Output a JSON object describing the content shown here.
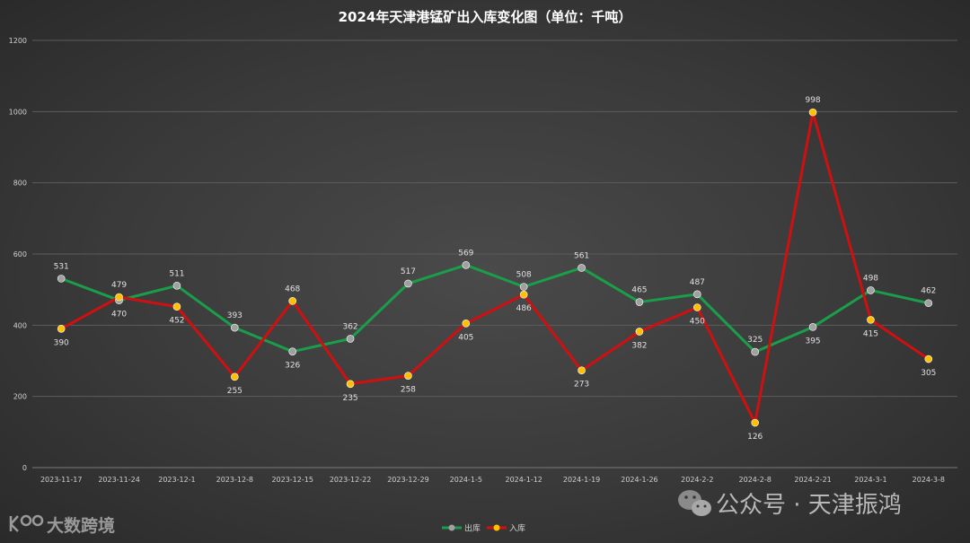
{
  "chart_data": {
    "type": "line",
    "title": "2024年天津港锰矿出入库变化图（单位：千吨）",
    "xlabel": "",
    "ylabel": "",
    "ylim": [
      0,
      1200
    ],
    "yticks": [
      0,
      200,
      400,
      600,
      800,
      1000,
      1200
    ],
    "grid": true,
    "legend_position": "bottom-center",
    "categories": [
      "2023-11-17",
      "2023-11-24",
      "2023-12-1",
      "2023-12-8",
      "2023-12-15",
      "2023-12-22",
      "2023-12-29",
      "2024-1-5",
      "2024-1-12",
      "2024-1-19",
      "2024-1-26",
      "2024-2-2",
      "2024-2-8",
      "2024-2-21",
      "2024-3-1",
      "2024-3-8"
    ],
    "series": [
      {
        "name": "出库",
        "color": "#1a9e4a",
        "marker_color": "#a0a0a0",
        "values": [
          531,
          470,
          511,
          393,
          326,
          362,
          517,
          569,
          508,
          561,
          465,
          487,
          325,
          395,
          498,
          462
        ]
      },
      {
        "name": "入库",
        "color": "#d01010",
        "marker_color": "#ffc000",
        "values": [
          390,
          479,
          452,
          255,
          468,
          235,
          258,
          405,
          486,
          273,
          382,
          450,
          126,
          998,
          415,
          305
        ]
      }
    ]
  },
  "watermark": {
    "right_text": "公众号 · 天津振鸿",
    "left_text": "大数跨境"
  }
}
